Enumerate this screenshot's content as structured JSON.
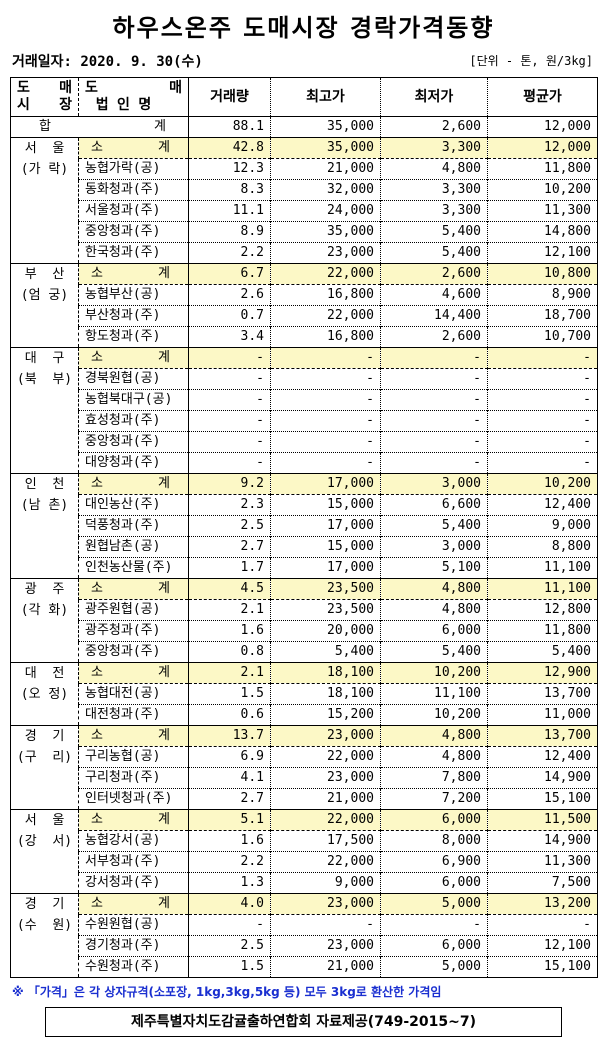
{
  "title": "하우스온주 도매시장 경락가격동향",
  "trade_date": "거래일자: 2020. 9. 30(수)",
  "unit": "[단위 - 톤, 원/3kg]",
  "headers": {
    "market_1a": "도",
    "market_1b": "매",
    "market_2a": "시",
    "market_2b": "장",
    "corp_1a": "도",
    "corp_1b": "매",
    "corp_2": "법 인 명",
    "volume": "거래량",
    "max": "최고가",
    "min": "최저가",
    "avg": "평균가"
  },
  "total": {
    "label_a": "합",
    "label_b": "계",
    "volume": "88.1",
    "max": "35,000",
    "min": "2,600",
    "avg": "12,000"
  },
  "subtotal_label": {
    "a": "소",
    "b": "계"
  },
  "groups": [
    {
      "market": [
        "서  울",
        "(가 락)"
      ],
      "rows": [
        {
          "name": "소계",
          "volume": "42.8",
          "max": "35,000",
          "min": "3,300",
          "avg": "12,000"
        },
        {
          "name": "농협가락(공)",
          "volume": "12.3",
          "max": "21,000",
          "min": "4,800",
          "avg": "11,800"
        },
        {
          "name": "동화청과(주)",
          "volume": "8.3",
          "max": "32,000",
          "min": "3,300",
          "avg": "10,200"
        },
        {
          "name": "서울청과(주)",
          "volume": "11.1",
          "max": "24,000",
          "min": "3,300",
          "avg": "11,300"
        },
        {
          "name": "중앙청과(주)",
          "volume": "8.9",
          "max": "35,000",
          "min": "5,400",
          "avg": "14,800"
        },
        {
          "name": "한국청과(주)",
          "volume": "2.2",
          "max": "23,000",
          "min": "5,400",
          "avg": "12,100"
        }
      ]
    },
    {
      "market": [
        "부  산",
        "(엄 궁)"
      ],
      "rows": [
        {
          "name": "소계",
          "volume": "6.7",
          "max": "22,000",
          "min": "2,600",
          "avg": "10,800"
        },
        {
          "name": "농협부산(공)",
          "volume": "2.6",
          "max": "16,800",
          "min": "4,600",
          "avg": "8,900"
        },
        {
          "name": "부산청과(주)",
          "volume": "0.7",
          "max": "22,000",
          "min": "14,400",
          "avg": "18,700"
        },
        {
          "name": "항도청과(주)",
          "volume": "3.4",
          "max": "16,800",
          "min": "2,600",
          "avg": "10,700"
        }
      ]
    },
    {
      "market": [
        "대  구",
        "(북  부)"
      ],
      "rows": [
        {
          "name": "소계",
          "volume": "-",
          "max": "-",
          "min": "-",
          "avg": "-"
        },
        {
          "name": "경북원협(공)",
          "volume": "-",
          "max": "-",
          "min": "-",
          "avg": "-"
        },
        {
          "name": "농협북대구(공)",
          "volume": "-",
          "max": "-",
          "min": "-",
          "avg": "-"
        },
        {
          "name": "효성청과(주)",
          "volume": "-",
          "max": "-",
          "min": "-",
          "avg": "-"
        },
        {
          "name": "중앙청과(주)",
          "volume": "-",
          "max": "-",
          "min": "-",
          "avg": "-"
        },
        {
          "name": "대양청과(주)",
          "volume": "-",
          "max": "-",
          "min": "-",
          "avg": "-"
        }
      ]
    },
    {
      "market": [
        "인  천",
        "(남 촌)"
      ],
      "rows": [
        {
          "name": "소계",
          "volume": "9.2",
          "max": "17,000",
          "min": "3,000",
          "avg": "10,200"
        },
        {
          "name": "대인농산(주)",
          "volume": "2.3",
          "max": "15,000",
          "min": "6,600",
          "avg": "12,400"
        },
        {
          "name": "덕풍청과(주)",
          "volume": "2.5",
          "max": "17,000",
          "min": "5,400",
          "avg": "9,000"
        },
        {
          "name": "원협남촌(공)",
          "volume": "2.7",
          "max": "15,000",
          "min": "3,000",
          "avg": "8,800"
        },
        {
          "name": "인천농산물(주)",
          "volume": "1.7",
          "max": "17,000",
          "min": "5,100",
          "avg": "11,100"
        }
      ]
    },
    {
      "market": [
        "광  주",
        "(각 화)"
      ],
      "rows": [
        {
          "name": "소계",
          "volume": "4.5",
          "max": "23,500",
          "min": "4,800",
          "avg": "11,100"
        },
        {
          "name": "광주원협(공)",
          "volume": "2.1",
          "max": "23,500",
          "min": "4,800",
          "avg": "12,800"
        },
        {
          "name": "광주청과(주)",
          "volume": "1.6",
          "max": "20,000",
          "min": "6,000",
          "avg": "11,800"
        },
        {
          "name": "중앙청과(주)",
          "volume": "0.8",
          "max": "5,400",
          "min": "5,400",
          "avg": "5,400"
        }
      ]
    },
    {
      "market": [
        "대  전",
        "(오 정)"
      ],
      "rows": [
        {
          "name": "소계",
          "volume": "2.1",
          "max": "18,100",
          "min": "10,200",
          "avg": "12,900"
        },
        {
          "name": "농협대전(공)",
          "volume": "1.5",
          "max": "18,100",
          "min": "11,100",
          "avg": "13,700"
        },
        {
          "name": "대전청과(주)",
          "volume": "0.6",
          "max": "15,200",
          "min": "10,200",
          "avg": "11,000"
        }
      ]
    },
    {
      "market": [
        "경  기",
        "(구  리)"
      ],
      "rows": [
        {
          "name": "소계",
          "volume": "13.7",
          "max": "23,000",
          "min": "4,800",
          "avg": "13,700"
        },
        {
          "name": "구리농협(공)",
          "volume": "6.9",
          "max": "22,000",
          "min": "4,800",
          "avg": "12,400"
        },
        {
          "name": "구리청과(주)",
          "volume": "4.1",
          "max": "23,000",
          "min": "7,800",
          "avg": "14,900"
        },
        {
          "name": "인터넷청과(주)",
          "volume": "2.7",
          "max": "21,000",
          "min": "7,200",
          "avg": "15,100"
        }
      ]
    },
    {
      "market": [
        "서  울",
        "(강  서)"
      ],
      "rows": [
        {
          "name": "소계",
          "volume": "5.1",
          "max": "22,000",
          "min": "6,000",
          "avg": "11,500"
        },
        {
          "name": "농협강서(공)",
          "volume": "1.6",
          "max": "17,500",
          "min": "8,000",
          "avg": "14,900"
        },
        {
          "name": "서부청과(주)",
          "volume": "2.2",
          "max": "22,000",
          "min": "6,900",
          "avg": "11,300"
        },
        {
          "name": "강서청과(주)",
          "volume": "1.3",
          "max": "9,000",
          "min": "6,000",
          "avg": "7,500"
        }
      ]
    },
    {
      "market": [
        "경  기",
        "(수  원)"
      ],
      "rows": [
        {
          "name": "소계",
          "volume": "4.0",
          "max": "23,000",
          "min": "5,000",
          "avg": "13,200"
        },
        {
          "name": "수원원협(공)",
          "volume": "-",
          "max": "-",
          "min": "-",
          "avg": "-"
        },
        {
          "name": "경기청과(주)",
          "volume": "2.5",
          "max": "23,000",
          "min": "6,000",
          "avg": "12,100"
        },
        {
          "name": "수원청과(주)",
          "volume": "1.5",
          "max": "21,000",
          "min": "5,000",
          "avg": "15,100"
        }
      ]
    }
  ],
  "footnote": "※ 「가격」은 각 상자규격(소포장, 1kg,3kg,5kg 등) 모두 3kg로 환산한 가격임",
  "source": "제주특별자치도감귤출하연합회 자료제공(749-2015~7)",
  "colors": {
    "subtotal_bg": "#fcf8c6",
    "footnote": "#1a2fd0"
  }
}
